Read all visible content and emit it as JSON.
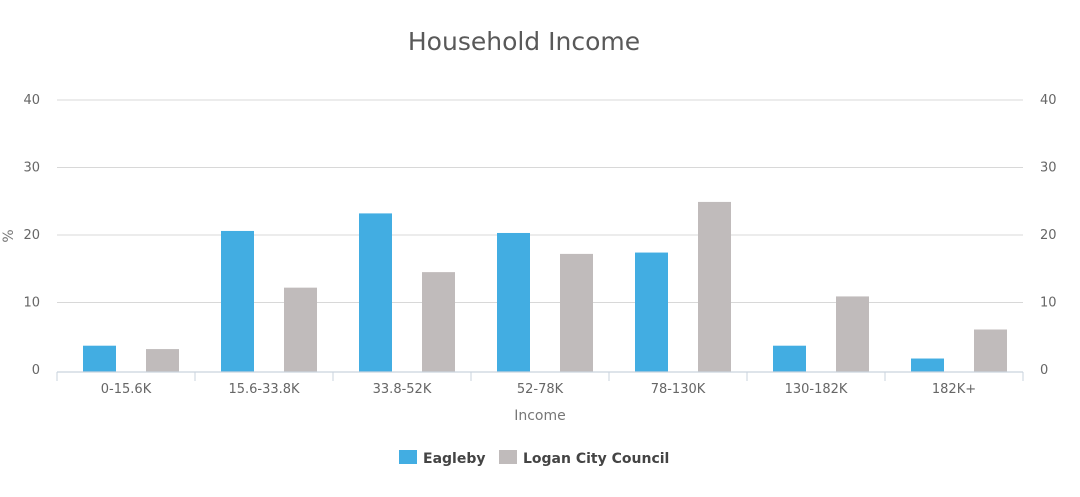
{
  "chart_data": {
    "type": "bar",
    "title": "Household Income",
    "xlabel": "Income",
    "ylabel": "%",
    "ylim": [
      0,
      40
    ],
    "yticks": [
      0,
      10,
      20,
      30,
      40
    ],
    "secondary_axis": true,
    "grid": true,
    "legend_position": "bottom-center",
    "categories": [
      "0-15.6K",
      "15.6-33.8K",
      "33.8-52K",
      "52-78K",
      "78-130K",
      "130-182K",
      "182K+"
    ],
    "series": [
      {
        "name": "Eagleby",
        "color": "#42ade2",
        "values": [
          3.6,
          20.6,
          23.2,
          20.3,
          17.4,
          3.6,
          1.7
        ]
      },
      {
        "name": "Logan City Council",
        "color": "#c0bbbb",
        "values": [
          3.1,
          12.2,
          14.5,
          17.2,
          24.9,
          10.9,
          6.0
        ]
      }
    ]
  }
}
